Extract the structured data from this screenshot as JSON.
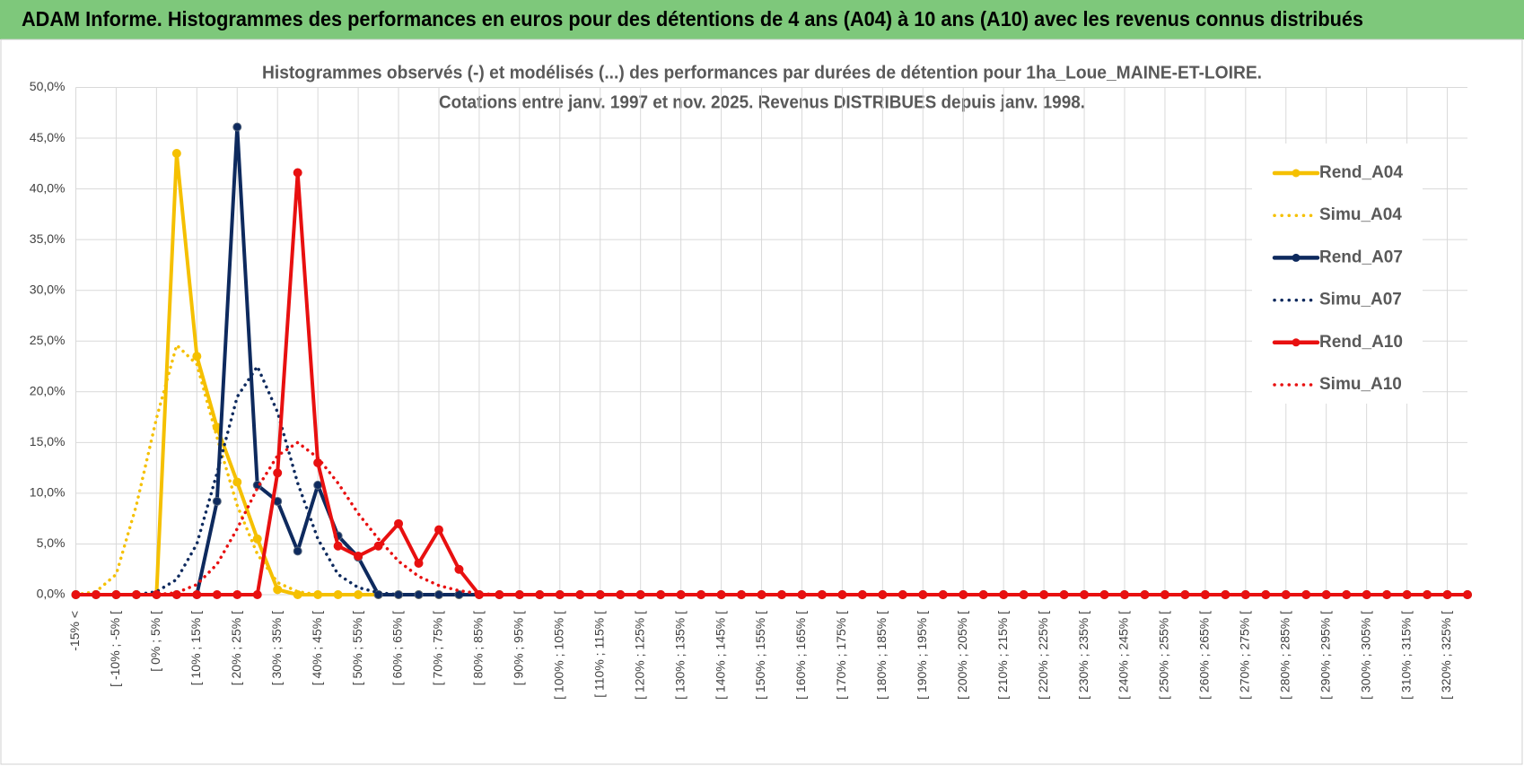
{
  "header": {
    "title": "ADAM Informe. Histogrammes des performances en euros pour des détentions de 4 ans (A04) à 10 ans (A10) avec les revenus connus distribués"
  },
  "chart_data": {
    "type": "line",
    "title": "Histogrammes observés (-) et modélisés (...) des performances par durées de détention pour 1ha_Loue_MAINE-ET-LOIRE.",
    "subtitle": "Cotations entre janv. 1997 et nov. 2025. Revenus DISTRIBUES depuis janv. 1998.",
    "categories": [
      "-15% <",
      null,
      "[ -10% ; -5% [",
      null,
      "[ 0% ; 5% [",
      null,
      "[ 10% ; 15% [",
      null,
      "[ 20% ; 25% [",
      null,
      "[ 30% ; 35% [",
      null,
      "[ 40% ; 45% [",
      null,
      "[ 50% ; 55% [",
      null,
      "[ 60% ; 65% [",
      null,
      "[ 70% ; 75% [",
      null,
      "[ 80% ; 85% [",
      null,
      "[ 90% ; 95% [",
      null,
      "[ 100% ; 105% [",
      null,
      "[ 110% ; 115% [",
      null,
      "[ 120% ; 125% [",
      null,
      "[ 130% ; 135% [",
      null,
      "[ 140% ; 145% [",
      null,
      "[ 150% ; 155% [",
      null,
      "[ 160% ; 165% [",
      null,
      "[ 170% ; 175% [",
      null,
      "[ 180% ; 185% [",
      null,
      "[ 190% ; 195% [",
      null,
      "[ 200% ; 205% [",
      null,
      "[ 210% ; 215% [",
      null,
      "[ 220% ; 225% [",
      null,
      "[ 230% ; 235% [",
      null,
      "[ 240% ; 245% [",
      null,
      "[ 250% ; 255% [",
      null,
      "[ 260% ; 265% [",
      null,
      "[ 270% ; 275% [",
      null,
      "[ 280% ; 285% [",
      null,
      "[ 290% ; 295% [",
      null,
      "[ 300% ; 305% [",
      null,
      "[ 310% ; 315% [",
      null,
      "[ 320% ; 325% [",
      null
    ],
    "series": [
      {
        "name": "Rend_A04",
        "color": "#f5c000",
        "style": "solid",
        "markers": true,
        "values": [
          0,
          0,
          0,
          0,
          0,
          43.5,
          23.5,
          16.5,
          11.1,
          5.5,
          0.5,
          0,
          0,
          0,
          0,
          0,
          0,
          0,
          0,
          0,
          0,
          0,
          0,
          0,
          0,
          0,
          0,
          0,
          0,
          0,
          0,
          0,
          0,
          0,
          0,
          0,
          0,
          0,
          0,
          0,
          0,
          0,
          0,
          0,
          0,
          0,
          0,
          0,
          0,
          0,
          0,
          0,
          0,
          0,
          0,
          0,
          0,
          0,
          0,
          0,
          0,
          0,
          0,
          0,
          0,
          0,
          0,
          0,
          0,
          0
        ]
      },
      {
        "name": "Simu_A04",
        "color": "#f5c000",
        "style": "dotted",
        "markers": false,
        "values": [
          0,
          0.3,
          2,
          8.8,
          17.4,
          24.6,
          22.7,
          15.5,
          8.8,
          4,
          1.2,
          0.3,
          0,
          0,
          0,
          0,
          0,
          0,
          0,
          0,
          0,
          0,
          0,
          0,
          0,
          0,
          0,
          0,
          0,
          0,
          0,
          0,
          0,
          0,
          0,
          0,
          0,
          0,
          0,
          0,
          0,
          0,
          0,
          0,
          0,
          0,
          0,
          0,
          0,
          0,
          0,
          0,
          0,
          0,
          0,
          0,
          0,
          0,
          0,
          0,
          0,
          0,
          0,
          0,
          0,
          0,
          0,
          0,
          0,
          0
        ]
      },
      {
        "name": "Rend_A07",
        "color": "#0e2a5e",
        "style": "solid",
        "markers": true,
        "values": [
          0,
          0,
          0,
          0,
          0,
          0,
          0,
          9.2,
          46.1,
          10.8,
          9.2,
          4.3,
          10.8,
          5.8,
          3.7,
          0,
          0,
          0,
          0,
          0,
          0,
          0,
          0,
          0,
          0,
          0,
          0,
          0,
          0,
          0,
          0,
          0,
          0,
          0,
          0,
          0,
          0,
          0,
          0,
          0,
          0,
          0,
          0,
          0,
          0,
          0,
          0,
          0,
          0,
          0,
          0,
          0,
          0,
          0,
          0,
          0,
          0,
          0,
          0,
          0,
          0,
          0,
          0,
          0,
          0,
          0,
          0,
          0,
          0,
          0
        ]
      },
      {
        "name": "Simu_A07",
        "color": "#0e2a5e",
        "style": "dotted",
        "markers": false,
        "values": [
          0,
          0,
          0,
          0,
          0.3,
          1.5,
          5,
          12,
          19.5,
          22.5,
          18,
          11,
          5.5,
          2,
          0.7,
          0.2,
          0,
          0,
          0,
          0,
          0,
          0,
          0,
          0,
          0,
          0,
          0,
          0,
          0,
          0,
          0,
          0,
          0,
          0,
          0,
          0,
          0,
          0,
          0,
          0,
          0,
          0,
          0,
          0,
          0,
          0,
          0,
          0,
          0,
          0,
          0,
          0,
          0,
          0,
          0,
          0,
          0,
          0,
          0,
          0,
          0,
          0,
          0,
          0,
          0,
          0,
          0,
          0,
          0,
          0
        ]
      },
      {
        "name": "Rend_A10",
        "color": "#e81010",
        "style": "solid",
        "markers": true,
        "values": [
          0,
          0,
          0,
          0,
          0,
          0,
          0,
          0,
          0,
          0,
          12,
          41.6,
          13,
          4.8,
          3.8,
          4.8,
          7,
          3.1,
          6.4,
          2.5,
          0,
          0,
          0,
          0,
          0,
          0,
          0,
          0,
          0,
          0,
          0,
          0,
          0,
          0,
          0,
          0,
          0,
          0,
          0,
          0,
          0,
          0,
          0,
          0,
          0,
          0,
          0,
          0,
          0,
          0,
          0,
          0,
          0,
          0,
          0,
          0,
          0,
          0,
          0,
          0,
          0,
          0,
          0,
          0,
          0,
          0,
          0,
          0,
          0,
          0
        ]
      },
      {
        "name": "Simu_A10",
        "color": "#e81010",
        "style": "dotted",
        "markers": false,
        "values": [
          0,
          0,
          0,
          0,
          0,
          0.2,
          1,
          3,
          6.5,
          10.5,
          13.7,
          15,
          13.5,
          11,
          8,
          5.5,
          3.3,
          1.8,
          0.9,
          0.4,
          0.1,
          0,
          0,
          0,
          0,
          0,
          0,
          0,
          0,
          0,
          0,
          0,
          0,
          0,
          0,
          0,
          0,
          0,
          0,
          0,
          0,
          0,
          0,
          0,
          0,
          0,
          0,
          0,
          0,
          0,
          0,
          0,
          0,
          0,
          0,
          0,
          0,
          0,
          0,
          0,
          0,
          0,
          0,
          0,
          0,
          0,
          0,
          0,
          0,
          0
        ]
      }
    ],
    "ylim": [
      0,
      50
    ],
    "yticks": [
      {
        "value": 0,
        "label": "0,0%"
      },
      {
        "value": 5,
        "label": "5,0%"
      },
      {
        "value": 10,
        "label": "10,0%"
      },
      {
        "value": 15,
        "label": "15,0%"
      },
      {
        "value": 20,
        "label": "20,0%"
      },
      {
        "value": 25,
        "label": "25,0%"
      },
      {
        "value": 30,
        "label": "30,0%"
      },
      {
        "value": 35,
        "label": "35,0%"
      },
      {
        "value": 40,
        "label": "40,0%"
      },
      {
        "value": 45,
        "label": "45,0%"
      },
      {
        "value": 50,
        "label": "50,0%"
      }
    ],
    "grid": true,
    "legend": "right"
  }
}
